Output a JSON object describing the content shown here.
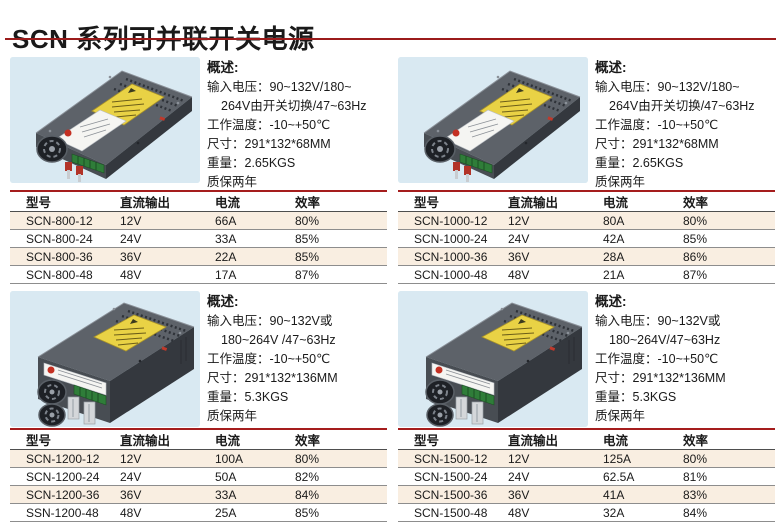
{
  "page": {
    "title": "SCN 系列可并联开关电源"
  },
  "colors": {
    "accent_red": "#a51d1d",
    "title_rule": "#9b1b1b",
    "row_stripe": "#f9eee1",
    "photo_background": "#d9e9f2",
    "warning_label_yellow": "#e9d245"
  },
  "table_headers": [
    "型号",
    "直流输出",
    "电流",
    "效率"
  ],
  "sections": [
    {
      "name": "SCN-800",
      "photo": "single-fan",
      "overview": {
        "heading": "概述:",
        "lines": [
          {
            "text": "输入电压：90~132V/180~",
            "indent": false
          },
          {
            "text": "264V由开关切换/47~63Hz",
            "indent": true
          },
          {
            "text": "工作温度：-10~+50℃",
            "indent": false
          },
          {
            "text": "尺寸：291*132*68MM",
            "indent": false
          },
          {
            "text": "重量：2.65KGS",
            "indent": false
          }
        ],
        "warranty": "质保两年"
      },
      "rows": [
        [
          "SCN-800-12",
          "12V",
          "66A",
          "80%"
        ],
        [
          "SCN-800-24",
          "24V",
          "33A",
          "85%"
        ],
        [
          "SCN-800-36",
          "36V",
          "22A",
          "85%"
        ],
        [
          "SCN-800-48",
          "48V",
          "17A",
          "87%"
        ]
      ]
    },
    {
      "name": "SCN-1000",
      "photo": "single-fan",
      "overview": {
        "heading": "概述:",
        "lines": [
          {
            "text": "输入电压：90~132V/180~",
            "indent": false
          },
          {
            "text": "264V由开关切换/47~63Hz",
            "indent": true
          },
          {
            "text": "工作温度：-10~+50℃",
            "indent": false
          },
          {
            "text": "尺寸：291*132*68MM",
            "indent": false
          },
          {
            "text": "重量：2.65KGS",
            "indent": false
          }
        ],
        "warranty": "质保两年"
      },
      "rows": [
        [
          "SCN-1000-12",
          "12V",
          "80A",
          "80%"
        ],
        [
          "SCN-1000-24",
          "24V",
          "42A",
          "85%"
        ],
        [
          "SCN-1000-36",
          "36V",
          "28A",
          "86%"
        ],
        [
          "SCN-1000-48",
          "48V",
          "21A",
          "87%"
        ]
      ]
    },
    {
      "name": "SCN-1200",
      "photo": "dual-fan",
      "overview": {
        "heading": "概述:",
        "lines": [
          {
            "text": "输入电压：90~132V或",
            "indent": false
          },
          {
            "text": "180~264V /47~63Hz",
            "indent": true
          },
          {
            "text": "工作温度：-10~+50℃",
            "indent": false
          },
          {
            "text": "尺寸：291*132*136MM",
            "indent": false
          },
          {
            "text": "重量：5.3KGS",
            "indent": false
          }
        ],
        "warranty": "质保两年"
      },
      "rows": [
        [
          "SCN-1200-12",
          "12V",
          "100A",
          "80%"
        ],
        [
          "SCN-1200-24",
          "24V",
          "50A",
          "82%"
        ],
        [
          "SCN-1200-36",
          "36V",
          "33A",
          "84%"
        ],
        [
          "SSN-1200-48",
          "48V",
          "25A",
          "85%"
        ]
      ]
    },
    {
      "name": "SCN-1500",
      "photo": "dual-fan",
      "overview": {
        "heading": "概述:",
        "lines": [
          {
            "text": "输入电压：90~132V或",
            "indent": false
          },
          {
            "text": "180~264V/47~63Hz",
            "indent": true
          },
          {
            "text": "工作温度：-10~+50℃",
            "indent": false
          },
          {
            "text": "尺寸：291*132*136MM",
            "indent": false
          },
          {
            "text": "重量：5.3KGS",
            "indent": false
          }
        ],
        "warranty": "质保两年"
      },
      "rows": [
        [
          "SCN-1500-12",
          "12V",
          "125A",
          "80%"
        ],
        [
          "SCN-1500-24",
          "24V",
          "62.5A",
          "81%"
        ],
        [
          "SCN-1500-36",
          "36V",
          "41A",
          "83%"
        ],
        [
          "SCN-1500-48",
          "48V",
          "32A",
          "84%"
        ]
      ]
    }
  ]
}
